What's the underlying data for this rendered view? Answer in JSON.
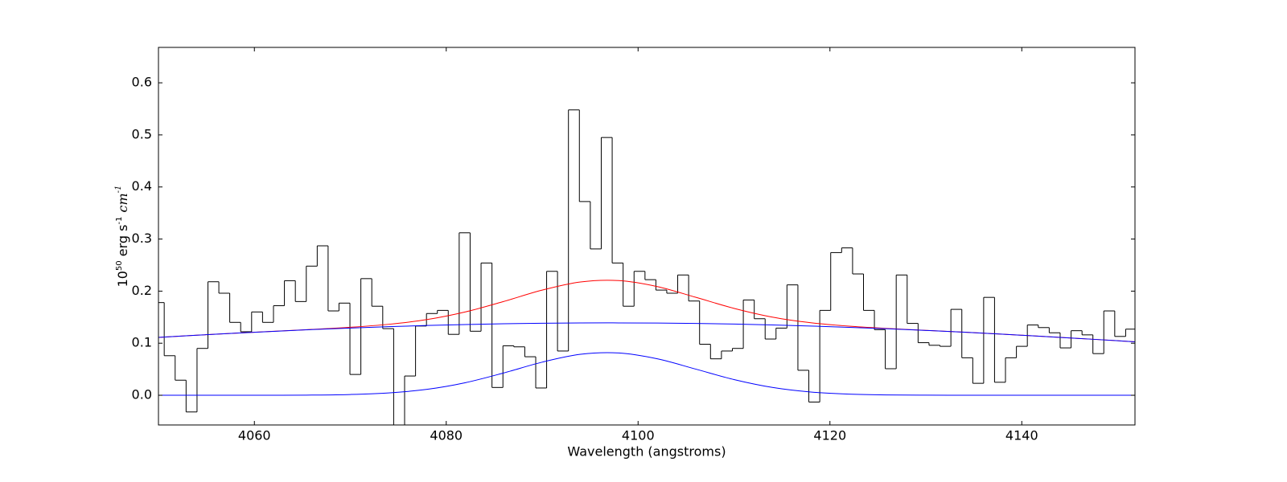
{
  "chart_data": {
    "type": "line",
    "xlabel": "Wavelength (angstroms)",
    "ylabel": [
      {
        "text": "10"
      },
      {
        "text": "50",
        "sup": true
      },
      {
        "text": " erg s"
      },
      {
        "text": "-1",
        "sup": true
      },
      {
        "text": "  cm",
        "math": true
      },
      {
        "text": "-1",
        "sup": true,
        "math": true
      }
    ],
    "xlim": [
      4050,
      4151.8
    ],
    "ylim": [
      -0.057,
      0.668
    ],
    "xticks": [
      4060,
      4080,
      4100,
      4120,
      4140
    ],
    "yticks": [
      {
        "value": 0,
        "label": "0.0"
      },
      0.1,
      0.2,
      0.3,
      0.4,
      0.5,
      0.6
    ],
    "ticks_inward": true,
    "series": [
      {
        "color": "#000000",
        "drawstyle": "steps-mid",
        "x": [
          4050.03,
          4051.17,
          4052.31,
          4053.45,
          4054.59,
          4055.73,
          4056.86,
          4058.0,
          4059.14,
          4060.28,
          4061.42,
          4062.56,
          4063.7,
          4064.84,
          4065.98,
          4067.12,
          4068.25,
          4069.39,
          4070.53,
          4071.67,
          4072.81,
          4073.95,
          4075.09,
          4076.23,
          4077.37,
          4078.51,
          4079.64,
          4080.78,
          4081.92,
          4083.06,
          4084.2,
          4085.34,
          4086.48,
          4087.62,
          4088.76,
          4089.9,
          4091.03,
          4092.17,
          4093.31,
          4094.45,
          4095.59,
          4096.73,
          4097.87,
          4099.01,
          4100.15,
          4101.29,
          4102.42,
          4103.56,
          4104.7,
          4105.84,
          4106.98,
          4108.12,
          4109.26,
          4110.4,
          4111.54,
          4112.68,
          4113.81,
          4114.95,
          4116.09,
          4117.23,
          4118.37,
          4119.51,
          4120.65,
          4121.79,
          4122.93,
          4124.07,
          4125.2,
          4126.34,
          4127.48,
          4128.62,
          4129.76,
          4130.9,
          4132.04,
          4133.18,
          4134.32,
          4135.46,
          4136.59,
          4137.73,
          4138.87,
          4140.01,
          4141.15,
          4142.29,
          4143.43,
          4144.57,
          4145.71,
          4146.85,
          4147.98,
          4149.12,
          4150.26,
          4151.4
        ],
        "values": [
          0.178,
          0.076,
          0.029,
          -0.032,
          0.09,
          0.218,
          0.196,
          0.14,
          0.122,
          0.16,
          0.14,
          0.172,
          0.22,
          0.18,
          0.248,
          0.287,
          0.162,
          0.177,
          0.04,
          0.224,
          0.171,
          0.128,
          -0.057,
          0.037,
          0.133,
          0.157,
          0.163,
          0.117,
          0.312,
          0.123,
          0.254,
          0.015,
          0.095,
          0.093,
          0.074,
          0.014,
          0.238,
          0.085,
          0.548,
          0.372,
          0.281,
          0.495,
          0.254,
          0.171,
          0.238,
          0.222,
          0.202,
          0.196,
          0.231,
          0.181,
          0.098,
          0.07,
          0.085,
          0.09,
          0.183,
          0.147,
          0.108,
          0.129,
          0.212,
          0.048,
          -0.013,
          0.163,
          0.274,
          0.283,
          0.233,
          0.163,
          0.126,
          0.051,
          0.231,
          0.138,
          0.101,
          0.096,
          0.094,
          0.165,
          0.072,
          0.023,
          0.188,
          0.025,
          0.072,
          0.094,
          0.135,
          0.13,
          0.12,
          0.091,
          0.124,
          0.116,
          0.08,
          0.162,
          0.113,
          0.127
        ]
      },
      {
        "color": "#ff0000",
        "x": [
          4050,
          4054,
          4058,
          4062,
          4066,
          4070,
          4074,
          4078,
          4082,
          4086,
          4090,
          4094,
          4098,
          4102,
          4106,
          4110,
          4114,
          4118,
          4122,
          4126,
          4130,
          4134,
          4138,
          4142,
          4146,
          4150,
          4152
        ],
        "values": [
          0.1112,
          0.1153,
          0.1192,
          0.1229,
          0.1265,
          0.1306,
          0.1363,
          0.1454,
          0.1601,
          0.1802,
          0.2019,
          0.2176,
          0.2202,
          0.2087,
          0.1882,
          0.1669,
          0.1501,
          0.1393,
          0.1327,
          0.1283,
          0.1247,
          0.1211,
          0.1173,
          0.1133,
          0.1091,
          0.1047,
          0.1024
        ]
      },
      {
        "color": "#0000ff",
        "x": [
          4050,
          4054,
          4058,
          4062,
          4066,
          4070,
          4074,
          4078,
          4082,
          4086,
          4090,
          4094,
          4098,
          4102,
          4106,
          4110,
          4114,
          4118,
          4122,
          4126,
          4130,
          4134,
          4138,
          4142,
          4146,
          4150,
          4152
        ],
        "values": [
          0.1112,
          0.1153,
          0.1192,
          0.1228,
          0.1261,
          0.1291,
          0.1318,
          0.134,
          0.1359,
          0.1373,
          0.1383,
          0.1389,
          0.139,
          0.1387,
          0.1379,
          0.1367,
          0.135,
          0.133,
          0.1305,
          0.1277,
          0.1245,
          0.1211,
          0.1173,
          0.1133,
          0.1091,
          0.1047,
          0.1024
        ]
      },
      {
        "color": "#0000ff",
        "x": [
          4050,
          4054,
          4058,
          4062,
          4066,
          4070,
          4074,
          4078,
          4082,
          4086,
          4090,
          4094,
          4098,
          4102,
          4106,
          4110,
          4114,
          4118,
          4122,
          4126,
          4130,
          4134,
          4138,
          4142,
          4146,
          4150,
          4152
        ],
        "values": [
          0,
          0,
          2e-05,
          0.0001,
          0.0004,
          0.0015,
          0.0045,
          0.0114,
          0.0242,
          0.0429,
          0.0636,
          0.0787,
          0.0812,
          0.07,
          0.0503,
          0.0302,
          0.0151,
          0.0063,
          0.0022,
          0.0006,
          0.0002,
          3e-05,
          0,
          0,
          0,
          0,
          0
        ]
      }
    ]
  }
}
